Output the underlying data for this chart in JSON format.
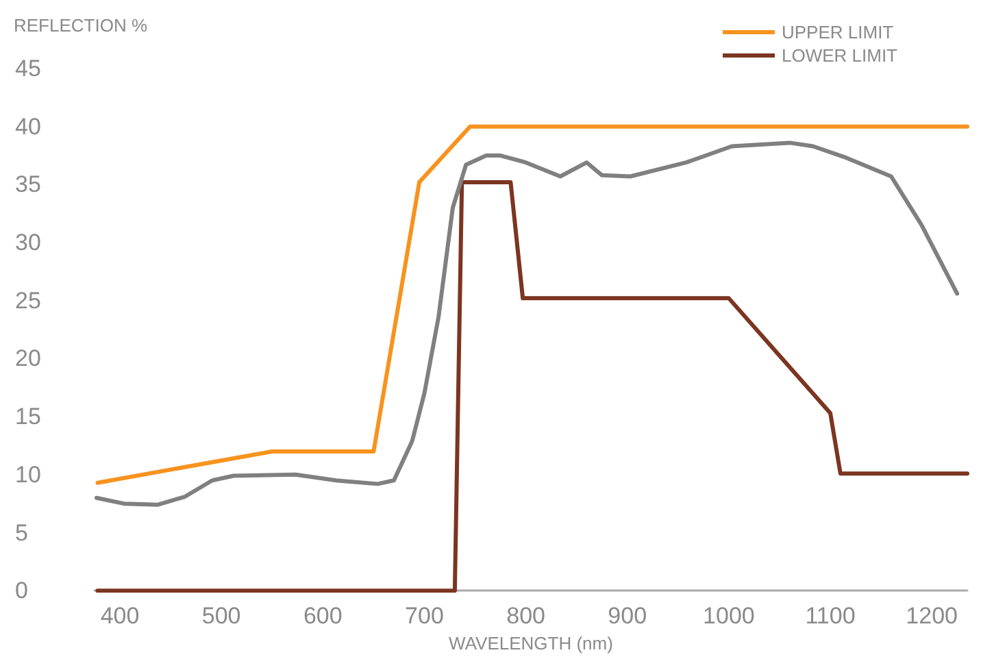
{
  "chart_data": {
    "type": "line",
    "ylabel": "REFLECTION %",
    "xlabel": "WAVELENGTH (nm)",
    "xlim": [
      375,
      1235
    ],
    "xticks": [
      400,
      500,
      600,
      700,
      800,
      900,
      1000,
      1100,
      1200
    ],
    "ylim": [
      0,
      45
    ],
    "yticks": [
      0,
      5,
      10,
      15,
      20,
      25,
      30,
      35,
      40,
      45
    ],
    "grid": false,
    "legend": "top right",
    "marker": "none",
    "line_style": "solid",
    "series": [
      {
        "name": "UPPER LIMIT",
        "color": "#f7931e",
        "x": [
          378,
          550,
          650,
          695,
          745,
          1235
        ],
        "values": [
          9.3,
          12,
          12,
          35.2,
          40,
          40
        ]
      },
      {
        "name": "LOWER LIMIT",
        "color": "#7b3520",
        "x": [
          378,
          730,
          737,
          785,
          797,
          1000,
          1100,
          1110,
          1235
        ],
        "values": [
          0,
          0,
          35.2,
          35.2,
          25.2,
          25.2,
          15.3,
          10.1,
          10.1
        ]
      },
      {
        "color": "#808080",
        "x": [
          377,
          404,
          437,
          464,
          491,
          512,
          573,
          613,
          654,
          670,
          688,
          700,
          714,
          728,
          741,
          761,
          775,
          800,
          834,
          860,
          875,
          903,
          958,
          1003,
          1060,
          1083,
          1116,
          1160,
          1190,
          1225
        ],
        "values": [
          8.0,
          7.5,
          7.4,
          8.1,
          9.5,
          9.9,
          10.0,
          9.5,
          9.2,
          9.5,
          12.9,
          17,
          23.6,
          33,
          36.7,
          37.5,
          37.5,
          36.9,
          35.7,
          36.9,
          35.8,
          35.7,
          36.9,
          38.3,
          38.6,
          38.3,
          37.3,
          35.7,
          31.5,
          25.6
        ]
      }
    ]
  }
}
